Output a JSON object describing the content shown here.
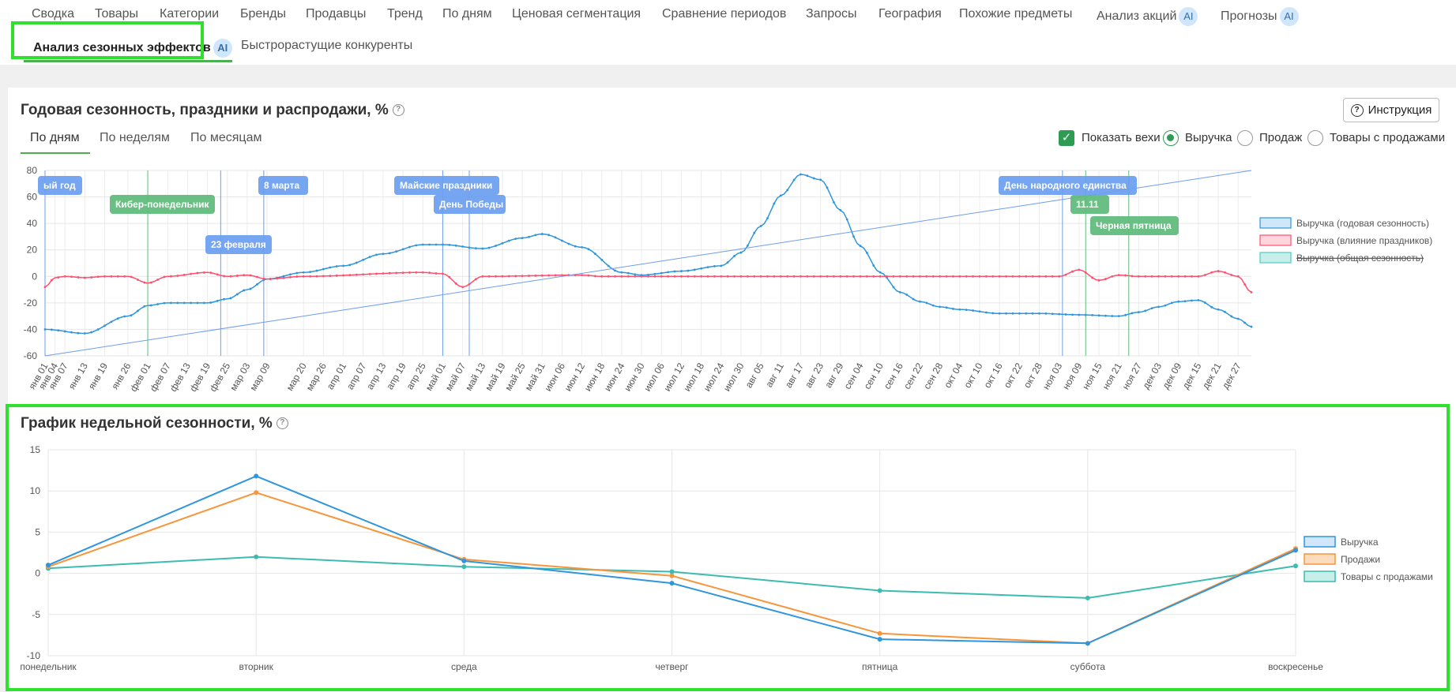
{
  "nav": {
    "row1": [
      {
        "label": "Сводка"
      },
      {
        "label": "Товары"
      },
      {
        "label": "Категории"
      },
      {
        "label": "Бренды"
      },
      {
        "label": "Продавцы"
      },
      {
        "label": "Тренд"
      },
      {
        "label": "По дням"
      },
      {
        "label": "Ценовая сегментация"
      },
      {
        "label": "Сравнение периодов"
      },
      {
        "label": "Запросы"
      },
      {
        "label": "География"
      },
      {
        "label": "Похожие предметы"
      },
      {
        "label": "Анализ акций",
        "badge": "AI"
      },
      {
        "label": "Прогнозы",
        "badge": "AI"
      }
    ],
    "row2": [
      {
        "label": "Анализ сезонных эффектов",
        "badge": "AI",
        "active": true
      },
      {
        "label": "Быстрорастущие конкуренты"
      }
    ]
  },
  "annual": {
    "title": "Годовая сезонность, праздники и распродажи, %",
    "instruction_label": "Инструкция",
    "subtabs": [
      "По дням",
      "По неделям",
      "По месяцам"
    ],
    "active_subtab": "По дням",
    "options": {
      "show_milestones": "Показать вехи",
      "show_milestones_checked": true,
      "radios": [
        "Выручка",
        "Продаж",
        "Товары с продажами"
      ],
      "selected": "Выручка"
    }
  },
  "chart_data": [
    {
      "type": "line",
      "title": "Годовая сезонность, праздники и распродажи, %",
      "x_tick_labels": [
        "янв 01",
        "янв 04",
        "янв 07",
        "янв 13",
        "янв 19",
        "янв 26",
        "фев 01",
        "фев 07",
        "фев 13",
        "фев 19",
        "фев 25",
        "мар 03",
        "мар 09",
        "мар 20",
        "мар 26",
        "апр 01",
        "апр 07",
        "апр 13",
        "апр 19",
        "апр 25",
        "май 01",
        "май 07",
        "май 13",
        "май 19",
        "май 25",
        "май 31",
        "июн 06",
        "июн 12",
        "июн 18",
        "июн 24",
        "июн 30",
        "июл 06",
        "июл 12",
        "июл 18",
        "июл 24",
        "июл 30",
        "авг 05",
        "авг 11",
        "авг 17",
        "авг 23",
        "авг 29",
        "сен 04",
        "сен 10",
        "сен 16",
        "сен 22",
        "сен 28",
        "окт 04",
        "окт 10",
        "окт 16",
        "окт 22",
        "окт 28",
        "ноя 03",
        "ноя 09",
        "ноя 15",
        "ноя 21",
        "ноя 27",
        "дек 03",
        "дек 09",
        "дек 15",
        "дек 21",
        "дек 27"
      ],
      "ylim": [
        -60,
        80
      ],
      "y_ticks": [
        80,
        60,
        40,
        20,
        0,
        -20,
        -40,
        -60
      ],
      "grid": true,
      "legend_position": "right",
      "legend": [
        {
          "name": "Выручка (годовая сезонность)",
          "color": "#2f95dc"
        },
        {
          "name": "Выручка (влияние праздников)",
          "color": "#ff4f6e"
        },
        {
          "name": "Выручка (общая сезонность)",
          "color": "#4ecdc4",
          "hidden": true
        }
      ],
      "series": [
        {
          "name": "Выручка (годовая сезонность)",
          "color": "#2f95dc",
          "points": [
            [
              "янв 01",
              -40
            ],
            [
              "янв 13",
              -43
            ],
            [
              "янв 26",
              -30
            ],
            [
              "фев 01",
              -22
            ],
            [
              "фев 07",
              -20
            ],
            [
              "фев 19",
              -20
            ],
            [
              "фев 25",
              -17
            ],
            [
              "мар 03",
              -10
            ],
            [
              "мар 09",
              -2
            ],
            [
              "мар 20",
              3
            ],
            [
              "апр 01",
              8
            ],
            [
              "апр 13",
              17
            ],
            [
              "апр 25",
              24
            ],
            [
              "май 01",
              24
            ],
            [
              "май 13",
              21
            ],
            [
              "май 25",
              29
            ],
            [
              "май 31",
              32
            ],
            [
              "июн 12",
              22
            ],
            [
              "июн 24",
              3
            ],
            [
              "июн 30",
              1
            ],
            [
              "июл 12",
              4
            ],
            [
              "июл 24",
              8
            ],
            [
              "июл 30",
              18
            ],
            [
              "авг 05",
              38
            ],
            [
              "авг 11",
              61
            ],
            [
              "авг 17",
              77
            ],
            [
              "авг 23",
              73
            ],
            [
              "авг 29",
              50
            ],
            [
              "сен 04",
              23
            ],
            [
              "сен 10",
              3
            ],
            [
              "сен 16",
              -12
            ],
            [
              "сен 22",
              -19
            ],
            [
              "сен 28",
              -23
            ],
            [
              "окт 04",
              -25
            ],
            [
              "окт 16",
              -28
            ],
            [
              "окт 28",
              -28
            ],
            [
              "ноя 09",
              -29
            ],
            [
              "ноя 21",
              -30
            ],
            [
              "ноя 27",
              -27
            ],
            [
              "дек 03",
              -23
            ],
            [
              "дек 09",
              -19
            ],
            [
              "дек 15",
              -18
            ],
            [
              "дек 21",
              -25
            ],
            [
              "дек 27",
              -32
            ],
            [
              "дек 31",
              -38
            ]
          ]
        },
        {
          "name": "Выручка (влияние праздников)",
          "color": "#ff4f6e",
          "points": [
            [
              "янв 01",
              -8
            ],
            [
              "янв 04",
              -1
            ],
            [
              "янв 07",
              0
            ],
            [
              "янв 13",
              -1
            ],
            [
              "янв 19",
              0
            ],
            [
              "янв 26",
              0
            ],
            [
              "фев 01",
              -5
            ],
            [
              "фев 07",
              0
            ],
            [
              "фев 19",
              3
            ],
            [
              "фев 25",
              0
            ],
            [
              "мар 03",
              1
            ],
            [
              "мар 09",
              -2
            ],
            [
              "мар 20",
              0
            ],
            [
              "апр 25",
              3
            ],
            [
              "май 01",
              2
            ],
            [
              "май 07",
              -8
            ],
            [
              "май 13",
              0
            ],
            [
              "июн 12",
              1
            ],
            [
              "июн 18",
              0
            ],
            [
              "ноя 03",
              0
            ],
            [
              "ноя 09",
              5
            ],
            [
              "ноя 15",
              -3
            ],
            [
              "ноя 21",
              1
            ],
            [
              "ноя 27",
              0
            ],
            [
              "дек 15",
              0
            ],
            [
              "дек 21",
              4
            ],
            [
              "дек 27",
              0
            ],
            [
              "дек 31",
              -12
            ]
          ]
        },
        {
          "name": "trend",
          "color": "#6a9ef0",
          "points": [
            [
              "янв 01",
              -60
            ],
            [
              "дек 31",
              80
            ]
          ]
        }
      ],
      "milestones": [
        {
          "label": "Новый год",
          "visible_text": "ый год",
          "date": "янв 01",
          "color": "#6a9ef0"
        },
        {
          "label": "Кибер-понедельник",
          "date": "фев 01",
          "color": "#5dbb7a"
        },
        {
          "label": "23 февраля",
          "date": "фев 23",
          "color": "#6a9ef0"
        },
        {
          "label": "8 марта",
          "date": "мар 08",
          "color": "#6a9ef0"
        },
        {
          "label": "Майские праздники",
          "date": "май 01",
          "color": "#6a9ef0"
        },
        {
          "label": "День Победы",
          "date": "май 09",
          "color": "#6a9ef0"
        },
        {
          "label": "День народного единства",
          "date": "ноя 04",
          "color": "#6a9ef0"
        },
        {
          "label": "11.11",
          "date": "ноя 11",
          "color": "#5dbb7a"
        },
        {
          "label": "Черная пятница",
          "date": "ноя 24",
          "color": "#5dbb7a"
        }
      ]
    },
    {
      "type": "line",
      "title": "График недельной сезонности, %",
      "categories": [
        "понедельник",
        "вторник",
        "среда",
        "четверг",
        "пятница",
        "суббота",
        "воскресенье"
      ],
      "ylim": [
        -10,
        15
      ],
      "y_ticks": [
        15,
        10,
        5,
        0,
        -5,
        -10
      ],
      "grid": true,
      "legend_position": "right",
      "series": [
        {
          "name": "Выручка",
          "color": "#2f95dc",
          "values": [
            1.0,
            11.8,
            1.5,
            -1.2,
            -8.0,
            -8.5,
            2.8
          ]
        },
        {
          "name": "Продажи",
          "color": "#f7953b",
          "values": [
            0.8,
            9.8,
            1.7,
            -0.3,
            -7.3,
            -8.5,
            3.0
          ]
        },
        {
          "name": "Товары с продажами",
          "color": "#3cbcb0",
          "values": [
            0.6,
            2.0,
            0.8,
            0.2,
            -2.1,
            -3.0,
            0.9
          ]
        }
      ]
    }
  ],
  "weekly": {
    "title": "График недельной сезонности, %"
  }
}
